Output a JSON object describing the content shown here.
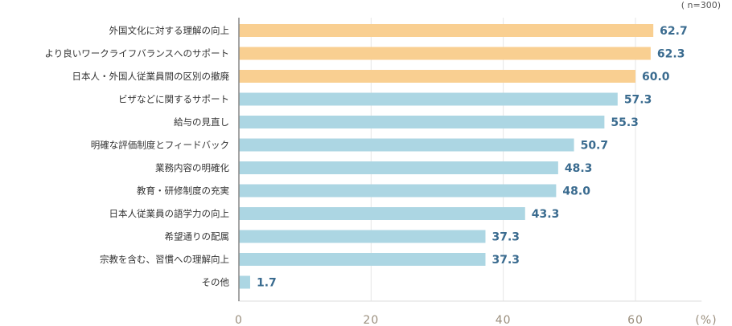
{
  "note": "( n=300)",
  "chart_data": {
    "type": "bar",
    "orientation": "horizontal",
    "categories": [
      "外国文化に対する理解の向上",
      "より良いワークライフバランスへのサポート",
      "日本人・外国人従業員間の区別の撤廃",
      "ビザなどに関するサポート",
      "給与の見直し",
      "明確な評価制度とフィードバック",
      "業務内容の明確化",
      "教育・研修制度の充実",
      "日本人従業員の語学力の向上",
      "希望通りの配属",
      "宗教を含む、習慣への理解向上",
      "その他"
    ],
    "values": [
      62.7,
      62.3,
      60.0,
      57.3,
      55.3,
      50.7,
      48.3,
      48.0,
      43.3,
      37.3,
      37.3,
      1.7
    ],
    "value_labels": [
      "62.7",
      "62.3",
      "60.0",
      "57.3",
      "55.3",
      "50.7",
      "48.3",
      "48.0",
      "43.3",
      "37.3",
      "37.3",
      "1.7"
    ],
    "highlight_count": 3,
    "highlight_color": "#f9cf91",
    "bar_color": "#acd6e3",
    "value_label_color": "#3a6b8f",
    "xlim": [
      0,
      70
    ],
    "xticks": [
      "0",
      "20",
      "40",
      "60"
    ],
    "xtick_values": [
      0,
      20,
      40,
      60
    ],
    "xunit": "(%)",
    "grid": true
  }
}
